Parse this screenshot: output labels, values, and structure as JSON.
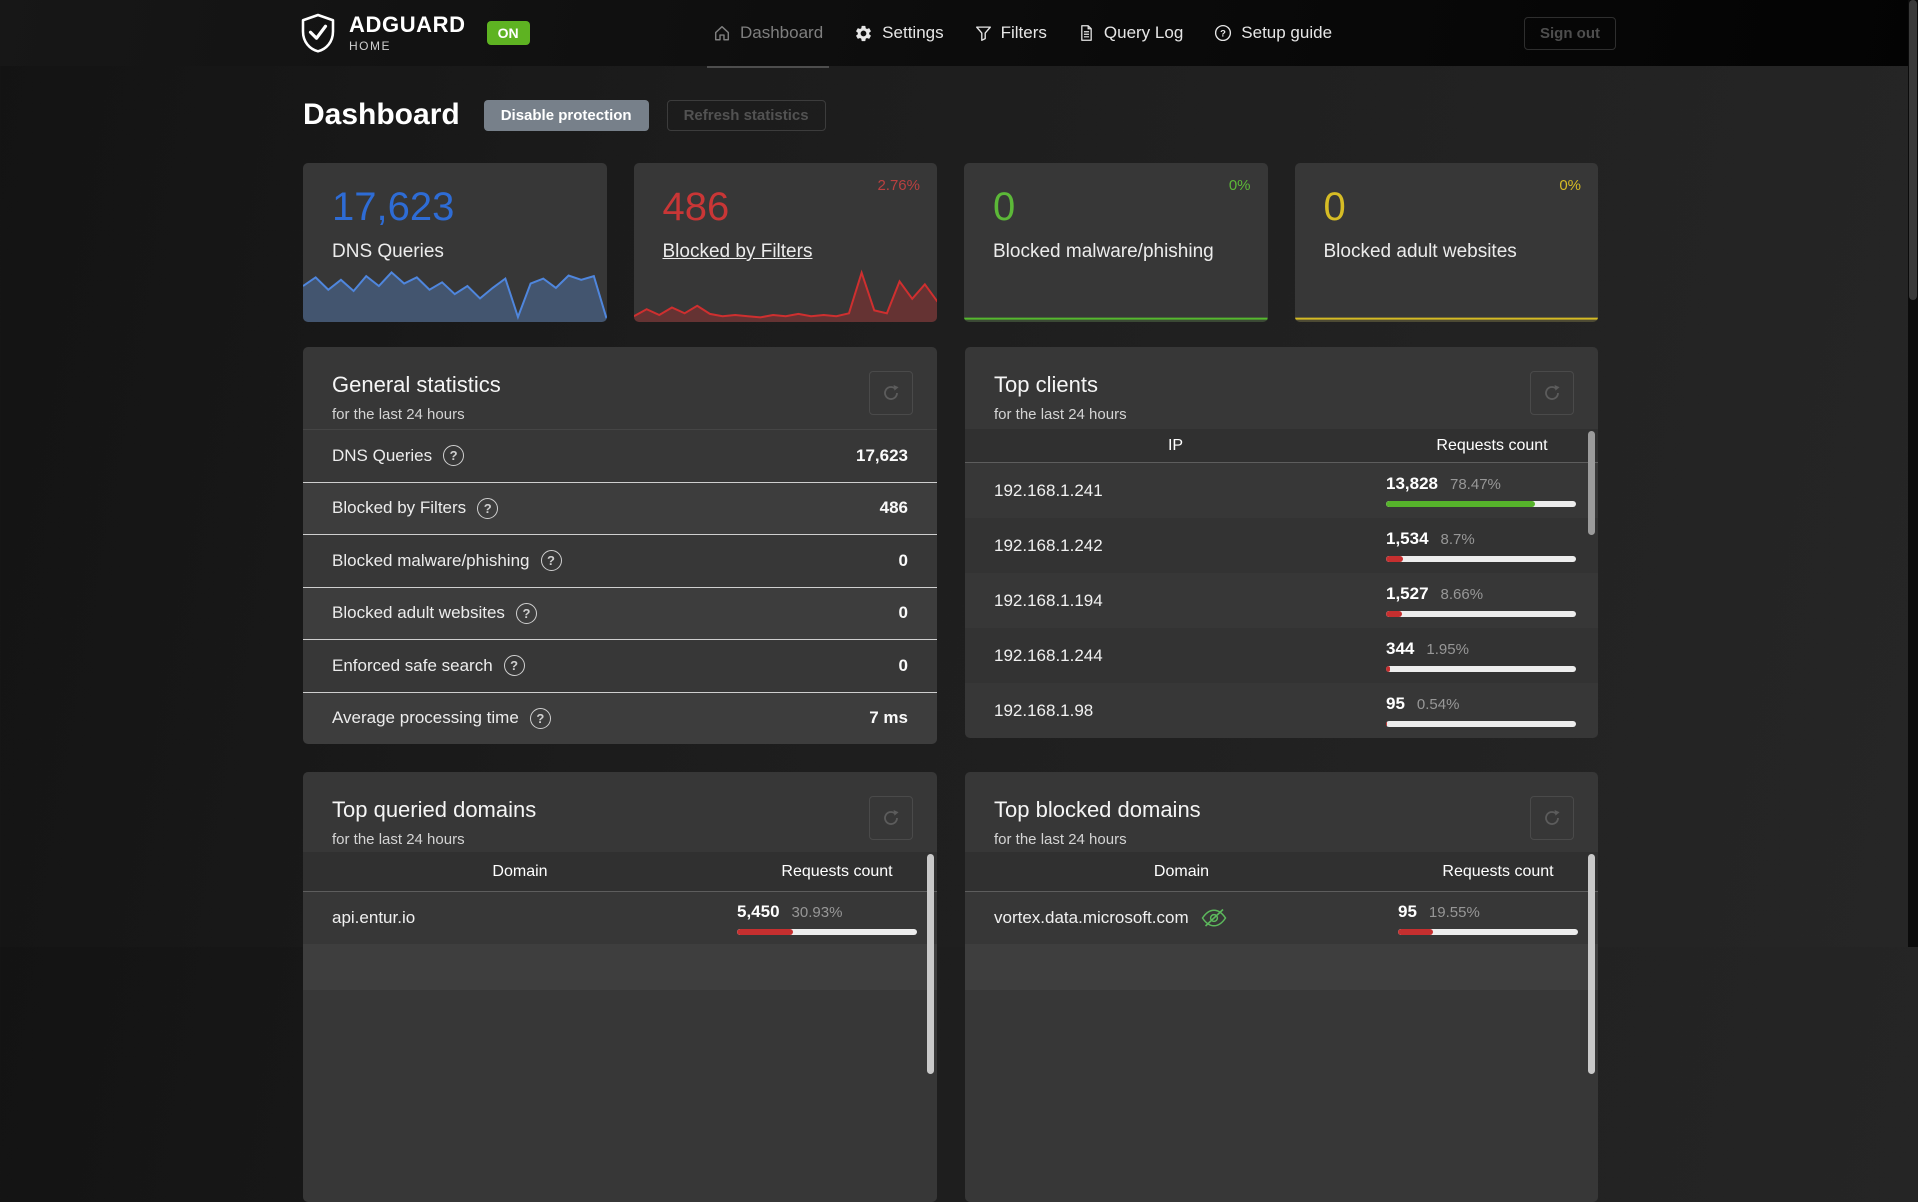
{
  "icons": {
    "question_mark": "?"
  },
  "navbar": {
    "logo": {
      "title": "ADGUARD",
      "subtitle": "HOME",
      "status_badge": "ON"
    },
    "items": [
      {
        "label": "Dashboard"
      },
      {
        "label": "Settings"
      },
      {
        "label": "Filters"
      },
      {
        "label": "Query Log"
      },
      {
        "label": "Setup guide"
      }
    ],
    "sign_out_label": "Sign out"
  },
  "page": {
    "title": "Dashboard",
    "disable_protection_label": "Disable protection",
    "refresh_statistics_label": "Refresh statistics"
  },
  "stat_cards": [
    {
      "value": "17,623",
      "label": "DNS Queries",
      "value_color": "#2e6cd5",
      "sparkline": {
        "points": [
          58,
          72,
          52,
          68,
          50,
          74,
          58,
          80,
          62,
          72,
          52,
          64,
          45,
          58,
          38,
          55,
          70,
          8,
          62,
          70,
          55,
          75,
          68,
          74,
          6
        ],
        "line_color": "#4f86dd",
        "fill_color": "rgba(84,130,195,0.4)"
      }
    },
    {
      "value": "486",
      "label": "Blocked by Filters",
      "percent": "2.76%",
      "value_color": "#c93636",
      "percent_color": "#b94040",
      "sparkline": {
        "points": [
          10,
          22,
          12,
          25,
          15,
          28,
          14,
          10,
          12,
          10,
          8,
          12,
          10,
          14,
          10,
          12,
          10,
          15,
          85,
          20,
          15,
          70,
          40,
          65,
          35
        ],
        "line_color": "#cf2f2f",
        "fill_color": "rgba(190,45,45,0.35)"
      }
    },
    {
      "value": "0",
      "label": "Blocked malware/phishing",
      "percent": "0%",
      "value_color": "#5cb838",
      "percent_color": "#5cb838",
      "sparkline": {
        "points": [
          10,
          10
        ],
        "line_color": "#55b82e",
        "fill_color": "rgba(90,180,50,0.15)"
      }
    },
    {
      "value": "0",
      "label": "Blocked adult websites",
      "percent": "0%",
      "value_color": "#d6bc25",
      "percent_color": "#d6bc25",
      "sparkline": {
        "points": [
          10,
          10
        ],
        "line_color": "#d4ba24",
        "fill_color": "rgba(210,185,40,0.15)"
      }
    }
  ],
  "general_stats": {
    "title": "General statistics",
    "subtitle": "for the last 24 hours",
    "rows": [
      {
        "label": "DNS Queries",
        "value": "17,623"
      },
      {
        "label": "Blocked by Filters",
        "value": "486"
      },
      {
        "label": "Blocked malware/phishing",
        "value": "0"
      },
      {
        "label": "Blocked adult websites",
        "value": "0"
      },
      {
        "label": "Enforced safe search",
        "value": "0"
      },
      {
        "label": "Average processing time",
        "value": "7 ms"
      }
    ]
  },
  "top_clients": {
    "title": "Top clients",
    "subtitle": "for the last 24 hours",
    "columns": [
      "IP",
      "Requests count"
    ],
    "rows": [
      {
        "ip": "192.168.1.241",
        "count": "13,828",
        "percent_label": "78.47%",
        "percent": 78.47,
        "bar_color": "#56b32b"
      },
      {
        "ip": "192.168.1.242",
        "count": "1,534",
        "percent_label": "8.7%",
        "percent": 8.7,
        "bar_color": "#c62f2f"
      },
      {
        "ip": "192.168.1.194",
        "count": "1,527",
        "percent_label": "8.66%",
        "percent": 8.66,
        "bar_color": "#c62f2f"
      },
      {
        "ip": "192.168.1.244",
        "count": "344",
        "percent_label": "1.95%",
        "percent": 1.95,
        "bar_color": "#c62f2f"
      },
      {
        "ip": "192.168.1.98",
        "count": "95",
        "percent_label": "0.54%",
        "percent": 0.54,
        "bar_color": "#c62f2f"
      }
    ]
  },
  "top_queried_domains": {
    "title": "Top queried domains",
    "subtitle": "for the last 24 hours",
    "columns": [
      "Domain",
      "Requests count"
    ],
    "rows": [
      {
        "domain": "api.entur.io",
        "count": "5,450",
        "percent_label": "30.93%",
        "percent": 30.93,
        "bar_color": "#c62f2f"
      }
    ]
  },
  "top_blocked_domains": {
    "title": "Top blocked domains",
    "subtitle": "for the last 24 hours",
    "columns": [
      "Domain",
      "Requests count"
    ],
    "rows": [
      {
        "domain": "vortex.data.microsoft.com",
        "count": "95",
        "percent_label": "19.55%",
        "percent": 19.55,
        "bar_color": "#c62f2f"
      }
    ]
  }
}
